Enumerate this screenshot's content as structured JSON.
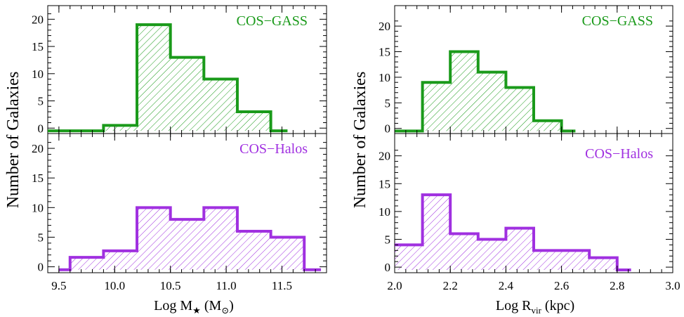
{
  "colors": {
    "cos_gass": "#1a9a1a",
    "cos_halos": "#a030e0",
    "axis": "#000000"
  },
  "chart_data": [
    {
      "type": "bar",
      "histogram": "step",
      "panel": "left-top",
      "label": "COS−GASS",
      "label_color": "#1a9a1a",
      "bin_edges": [
        9.4,
        9.9,
        10.2,
        10.5,
        10.8,
        11.1,
        11.4,
        11.55
      ],
      "values": [
        -0.5,
        0.5,
        19,
        13,
        9,
        3,
        -0.5
      ],
      "xlim": [
        9.4,
        11.9
      ],
      "ylim": [
        -1,
        22.5
      ],
      "yticks": [
        0,
        5,
        10,
        15,
        20
      ],
      "ylabel": "Number of Galaxies"
    },
    {
      "type": "bar",
      "histogram": "step",
      "panel": "left-bottom",
      "label": "COS−Halos",
      "label_color": "#a030e0",
      "bin_edges": [
        9.5,
        9.6,
        9.9,
        10.2,
        10.5,
        10.8,
        11.1,
        11.4,
        11.7,
        11.85
      ],
      "values": [
        -0.5,
        1.6,
        2.7,
        10,
        8,
        10,
        6,
        5,
        -0.5
      ],
      "xlim": [
        9.4,
        11.9
      ],
      "ylim": [
        -1,
        22.5
      ],
      "yticks": [
        0,
        5,
        10,
        15,
        20
      ],
      "xticks": [
        9.5,
        10.0,
        10.5,
        11.0,
        11.5
      ],
      "xtick_labels": [
        "9.5",
        "10.0",
        "10.5",
        "11.0",
        "11.5"
      ],
      "xlabel": "Log M",
      "xlabel_sub": "★",
      "xlabel_unit": "(M",
      "xlabel_unit_sub": "⊙",
      "xlabel_unit_close": ")",
      "ylabel": "Number of Galaxies"
    },
    {
      "type": "bar",
      "histogram": "step",
      "panel": "right-top",
      "label": "COS−GASS",
      "label_color": "#1a9a1a",
      "bin_edges": [
        2.0,
        2.1,
        2.2,
        2.3,
        2.4,
        2.5,
        2.6,
        2.65
      ],
      "values": [
        -0.5,
        9,
        15,
        11,
        8,
        1.5,
        -0.5
      ],
      "xlim": [
        2.0,
        3.0
      ],
      "ylim": [
        -1,
        24
      ],
      "yticks": [
        0,
        5,
        10,
        15,
        20
      ],
      "ylabel": "Number of Galaxies"
    },
    {
      "type": "bar",
      "histogram": "step",
      "panel": "right-bottom",
      "label": "COS−Halos",
      "label_color": "#a030e0",
      "bin_edges": [
        2.0,
        2.1,
        2.2,
        2.3,
        2.4,
        2.5,
        2.6,
        2.7,
        2.8,
        2.85
      ],
      "values": [
        4,
        13,
        6,
        5,
        7,
        3,
        3,
        1.7,
        -0.5
      ],
      "xlim": [
        2.0,
        3.0
      ],
      "ylim": [
        -1,
        24
      ],
      "yticks": [
        0,
        5,
        10,
        15,
        20
      ],
      "xticks": [
        2.0,
        2.2,
        2.4,
        2.6,
        2.8,
        3.0
      ],
      "xtick_labels": [
        "2.0",
        "2.2",
        "2.4",
        "2.6",
        "2.8",
        "3.0"
      ],
      "xlabel": "Log R",
      "xlabel_sub": "vir",
      "xlabel_unit": "(kpc)",
      "ylabel": "Number of Galaxies"
    }
  ]
}
